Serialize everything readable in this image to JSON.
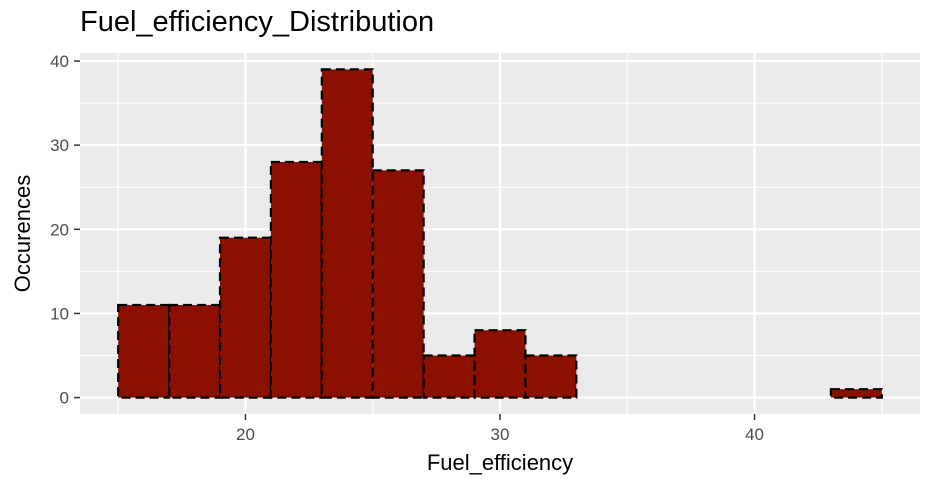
{
  "chart_data": {
    "type": "bar",
    "title": "Fuel_efficiency_Distribution",
    "xlabel": "Fuel_efficiency",
    "ylabel": "Occurences",
    "bin_width": 2,
    "bins": [
      {
        "x0": 15,
        "x1": 17,
        "count": 11
      },
      {
        "x0": 17,
        "x1": 19,
        "count": 11
      },
      {
        "x0": 19,
        "x1": 21,
        "count": 19
      },
      {
        "x0": 21,
        "x1": 23,
        "count": 28
      },
      {
        "x0": 23,
        "x1": 25,
        "count": 39
      },
      {
        "x0": 25,
        "x1": 27,
        "count": 27
      },
      {
        "x0": 27,
        "x1": 29,
        "count": 5
      },
      {
        "x0": 29,
        "x1": 31,
        "count": 8
      },
      {
        "x0": 31,
        "x1": 33,
        "count": 5
      },
      {
        "x0": 33,
        "x1": 35,
        "count": 0
      },
      {
        "x0": 35,
        "x1": 37,
        "count": 0
      },
      {
        "x0": 37,
        "x1": 39,
        "count": 0
      },
      {
        "x0": 39,
        "x1": 41,
        "count": 0
      },
      {
        "x0": 41,
        "x1": 43,
        "count": 0
      },
      {
        "x0": 43,
        "x1": 45,
        "count": 1
      }
    ],
    "xlim": [
      13.5,
      46.5
    ],
    "ylim": [
      -1.95,
      40.95
    ],
    "x_ticks": [
      20,
      30,
      40
    ],
    "y_ticks": [
      0,
      10,
      20,
      30,
      40
    ],
    "grid": true,
    "legend": "none",
    "colors": {
      "bar_fill": "#8B1000",
      "bar_outline": "#000000",
      "panel_background": "#EBEBEB",
      "grid_line": "#FFFFFF"
    }
  }
}
